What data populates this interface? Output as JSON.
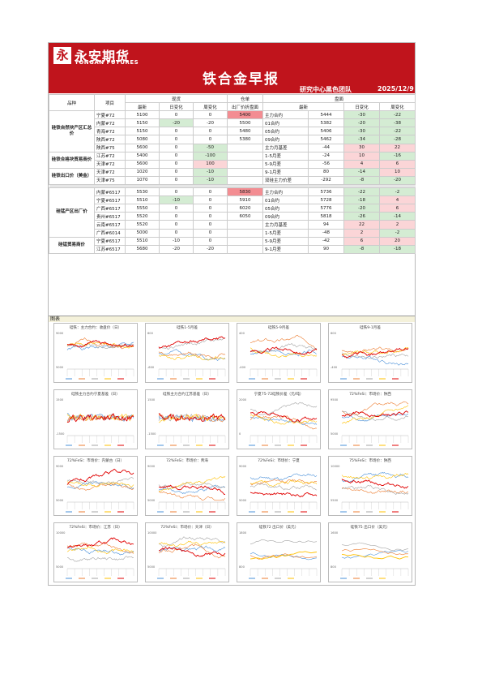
{
  "header": {
    "logo_glyph": "永",
    "brand_cn": "永安期货",
    "brand_en": "YONGAN FUTURES",
    "title": "铁合金早报",
    "team": "研究中心黑色团队",
    "date": "2025/12/9"
  },
  "table": {
    "head": {
      "col_variety": "品种",
      "col_item": "项目",
      "group_spot": "现货",
      "group_warrant": "仓单",
      "group_futures": "盘面",
      "latest": "最新",
      "daily_change": "日变化",
      "weekly_change": "周变化",
      "warrant_sub": "出厂价折盘面"
    },
    "rows": [
      {
        "cat": "硅铁自然块产区汇总价",
        "item": "宁夏#72",
        "s_latest": "5100",
        "s_day": "0",
        "s_week": "0",
        "warrant": "5400",
        "f_name": "主力合约",
        "f_latest": "5444",
        "f_day": "-30",
        "f_week": "-22",
        "hl": {
          "warrant": "red",
          "f_day": "green",
          "f_week": "green"
        }
      },
      {
        "cat": "",
        "item": "内蒙#72",
        "s_latest": "5150",
        "s_day": "-20",
        "s_week": "-20",
        "warrant": "5500",
        "f_name": "01合约",
        "f_latest": "5382",
        "f_day": "-20",
        "f_week": "-38",
        "hl": {
          "s_day": "green",
          "f_day": "green",
          "f_week": "green"
        }
      },
      {
        "cat": "",
        "item": "青海#72",
        "s_latest": "5150",
        "s_day": "0",
        "s_week": "0",
        "warrant": "5480",
        "f_name": "05合约",
        "f_latest": "5406",
        "f_day": "-30",
        "f_week": "-22",
        "hl": {
          "f_day": "green",
          "f_week": "green"
        }
      },
      {
        "cat": "",
        "item": "陕西#72",
        "s_latest": "5080",
        "s_day": "0",
        "s_week": "0",
        "warrant": "5380",
        "f_name": "09合约",
        "f_latest": "5462",
        "f_day": "-34",
        "f_week": "-28",
        "hl": {
          "f_day": "green",
          "f_week": "green"
        }
      },
      {
        "cat": "",
        "item": "陕西#75",
        "s_latest": "5600",
        "s_day": "0",
        "s_week": "-50",
        "warrant": "",
        "f_name": "主力月基差",
        "f_latest": "-44",
        "f_day": "30",
        "f_week": "22",
        "hl": {
          "s_week": "green",
          "f_day": "pink",
          "f_week": "pink"
        }
      },
      {
        "cat": "硅铁合格块贸易商价",
        "item": "江苏#72",
        "s_latest": "5400",
        "s_day": "0",
        "s_week": "-100",
        "warrant": "",
        "f_name": "1-5月差",
        "f_latest": "-24",
        "f_day": "10",
        "f_week": "-16",
        "hl": {
          "s_week": "green",
          "f_day": "pink",
          "f_week": "green"
        }
      },
      {
        "cat": "",
        "item": "天津#72",
        "s_latest": "5600",
        "s_day": "0",
        "s_week": "100",
        "warrant": "",
        "f_name": "5-9月差",
        "f_latest": "-56",
        "f_day": "4",
        "f_week": "6",
        "hl": {
          "s_week": "pink",
          "f_day": "pink",
          "f_week": "pink"
        }
      },
      {
        "cat": "硅铁出口价（美金）",
        "item": "天津#72",
        "s_latest": "1020",
        "s_day": "0",
        "s_week": "-10",
        "warrant": "",
        "f_name": "9-1月差",
        "f_latest": "80",
        "f_day": "-14",
        "f_week": "10",
        "hl": {
          "s_week": "green",
          "f_day": "green",
          "f_week": "pink"
        }
      },
      {
        "cat": "",
        "item": "天津#75",
        "s_latest": "1070",
        "s_day": "0",
        "s_week": "-10",
        "warrant": "",
        "f_name": "双硅主力价差",
        "f_latest": "-292",
        "f_day": "-8",
        "f_week": "-20",
        "hl": {
          "s_week": "green",
          "f_day": "green",
          "f_week": "green"
        }
      },
      {
        "sep": true
      },
      {
        "cat": "硅锰产区出厂价",
        "item": "内蒙#6517",
        "s_latest": "5530",
        "s_day": "0",
        "s_week": "0",
        "warrant": "5830",
        "f_name": "主力合约",
        "f_latest": "5736",
        "f_day": "-22",
        "f_week": "-2",
        "hl": {
          "warrant": "red",
          "f_day": "green",
          "f_week": "green"
        }
      },
      {
        "cat": "",
        "item": "宁夏#6517",
        "s_latest": "5510",
        "s_day": "-10",
        "s_week": "0",
        "warrant": "5910",
        "f_name": "01合约",
        "f_latest": "5728",
        "f_day": "-18",
        "f_week": "4",
        "hl": {
          "s_day": "green",
          "f_day": "green",
          "f_week": "pink"
        }
      },
      {
        "cat": "",
        "item": "广西#6517",
        "s_latest": "5550",
        "s_day": "0",
        "s_week": "0",
        "warrant": "6020",
        "f_name": "05合约",
        "f_latest": "5776",
        "f_day": "-20",
        "f_week": "6",
        "hl": {
          "f_day": "green",
          "f_week": "pink"
        }
      },
      {
        "cat": "",
        "item": "贵州#6517",
        "s_latest": "5520",
        "s_day": "0",
        "s_week": "0",
        "warrant": "6050",
        "f_name": "09合约",
        "f_latest": "5818",
        "f_day": "-26",
        "f_week": "-14",
        "hl": {
          "f_day": "green",
          "f_week": "green"
        }
      },
      {
        "cat": "",
        "item": "云南#6517",
        "s_latest": "5520",
        "s_day": "0",
        "s_week": "0",
        "warrant": "",
        "f_name": "主力月基差",
        "f_latest": "94",
        "f_day": "22",
        "f_week": "2",
        "hl": {
          "f_day": "pink",
          "f_week": "pink"
        }
      },
      {
        "cat": "",
        "item": "广西#6014",
        "s_latest": "5000",
        "s_day": "0",
        "s_week": "0",
        "warrant": "",
        "f_name": "1-5月差",
        "f_latest": "-48",
        "f_day": "2",
        "f_week": "-2",
        "hl": {
          "f_day": "pink",
          "f_week": "green"
        }
      },
      {
        "cat": "硅锰贸易商价",
        "item": "宁夏#6517",
        "s_latest": "5510",
        "s_day": "-10",
        "s_week": "0",
        "warrant": "",
        "f_name": "5-9月差",
        "f_latest": "-42",
        "f_day": "6",
        "f_week": "20",
        "hl": {
          "f_day": "pink",
          "f_week": "pink"
        }
      },
      {
        "cat": "",
        "item": "江苏#6517",
        "s_latest": "5680",
        "s_day": "-20",
        "s_week": "-20",
        "warrant": "",
        "f_name": "9-1月差",
        "f_latest": "90",
        "f_day": "-8",
        "f_week": "-18",
        "hl": {
          "f_day": "green",
          "f_week": "green"
        }
      }
    ]
  },
  "charts_section_label": "图表",
  "charts": [
    {
      "title": "硅铁：主力合约：收盘价（日）",
      "kind": "multi",
      "seed": 1,
      "ymin": "5000",
      "ymax": "9000"
    },
    {
      "title": "硅铁1-5月差",
      "kind": "multi",
      "seed": 2,
      "ymin": "-600",
      "ymax": "600"
    },
    {
      "title": "硅铁5-9月差",
      "kind": "multi",
      "seed": 3,
      "ymin": "-400",
      "ymax": "400"
    },
    {
      "title": "硅铁9-1月差",
      "kind": "multi",
      "seed": 4,
      "ymin": "-400",
      "ymax": "600"
    },
    {
      "title": "硅铁主力合约宁夏基差（日）",
      "kind": "noisy",
      "seed": 5,
      "ymin": "-1500",
      "ymax": "1500"
    },
    {
      "title": "硅铁主力合约江苏基差（日）",
      "kind": "noisy",
      "seed": 6,
      "ymin": "-1500",
      "ymax": "1500"
    },
    {
      "title": "宁夏75-72硅铁价差（元/吨）",
      "kind": "multi",
      "seed": 7,
      "ymin": "0",
      "ymax": "2000"
    },
    {
      "title": "72%FeSi：市场价：陕西",
      "kind": "multi",
      "seed": 8,
      "ymin": "5000",
      "ymax": "9500"
    },
    {
      "title": "72%FeSi：市场价：内蒙古（日）",
      "kind": "multi",
      "seed": 9,
      "ymin": "5000",
      "ymax": "9000"
    },
    {
      "title": "72%FeSi：市场价：青海",
      "kind": "multi",
      "seed": 10,
      "ymin": "5000",
      "ymax": "9000"
    },
    {
      "title": "72%FeSi：市场价：宁夏",
      "kind": "multi",
      "seed": 11,
      "ymin": "5000",
      "ymax": "9000"
    },
    {
      "title": "75%FeSi：市场价：陕西",
      "kind": "multi",
      "seed": 12,
      "ymin": "5500",
      "ymax": "10000"
    },
    {
      "title": "72%FeSi：市场价：江苏（日）",
      "kind": "multi",
      "seed": 13,
      "ymin": "5000",
      "ymax": "10000"
    },
    {
      "title": "72%FeSi：市场价：天津（日）",
      "kind": "multi",
      "seed": 14,
      "ymin": "5000",
      "ymax": "10000"
    },
    {
      "title": "硅铁72 出口价（美元）",
      "kind": "monthly",
      "seed": 15,
      "ymin": "800",
      "ymax": "1800"
    },
    {
      "title": "硅铁75 出口价（美元）",
      "kind": "monthly",
      "seed": 16,
      "ymin": "800",
      "ymax": "1600"
    }
  ],
  "colors": {
    "blue": "#4a90d9",
    "orange": "#ed7d31",
    "gray": "#a5a5a5",
    "yellow": "#ffc000",
    "red": "#e00000",
    "banner": "#c0141c"
  }
}
